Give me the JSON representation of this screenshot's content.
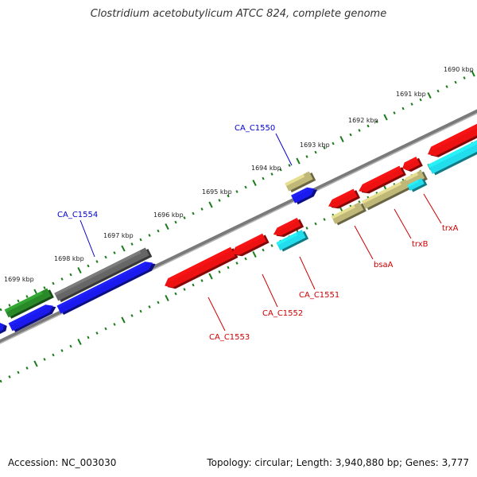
{
  "title": "Clostridium acetobutylicum ATCC 824, complete genome",
  "footer": {
    "accession": "Accession: NC_003030",
    "summary": "Topology: circular; Length: 3,940,880 bp; Genes: 3,777"
  },
  "colors": {
    "backbone": "#7a7a7a",
    "tick": "#1a7a1a",
    "red_gene": "#ee1111",
    "blue_gene": "#1a1aee",
    "grey_gene": "#666666",
    "green_gene": "#2a8a2a",
    "khaki_gene": "#c0b878",
    "cyan_gene": "#22ddee",
    "red_label": "#cc0000",
    "blue_label": "#0000cc"
  },
  "scale_labels": [
    {
      "text": "1690 kbp"
    },
    {
      "text": "1691 kbp"
    },
    {
      "text": "1692 kbp"
    },
    {
      "text": "1693 kbp"
    },
    {
      "text": "1694 kbp"
    },
    {
      "text": "1695 kbp"
    },
    {
      "text": "1696 kbp"
    },
    {
      "text": "1697 kbp"
    },
    {
      "text": "1698 kbp"
    },
    {
      "text": "1699 kbp"
    }
  ],
  "gene_labels": [
    {
      "text": "CA_C1550",
      "color": "blue"
    },
    {
      "text": "CA_C1554",
      "color": "blue"
    },
    {
      "text": "trxA",
      "color": "red"
    },
    {
      "text": "trxB",
      "color": "red"
    },
    {
      "text": "bsaA",
      "color": "red"
    },
    {
      "text": "CA_C1551",
      "color": "red"
    },
    {
      "text": "CA_C1552",
      "color": "red"
    },
    {
      "text": "CA_C1553",
      "color": "red"
    }
  ]
}
